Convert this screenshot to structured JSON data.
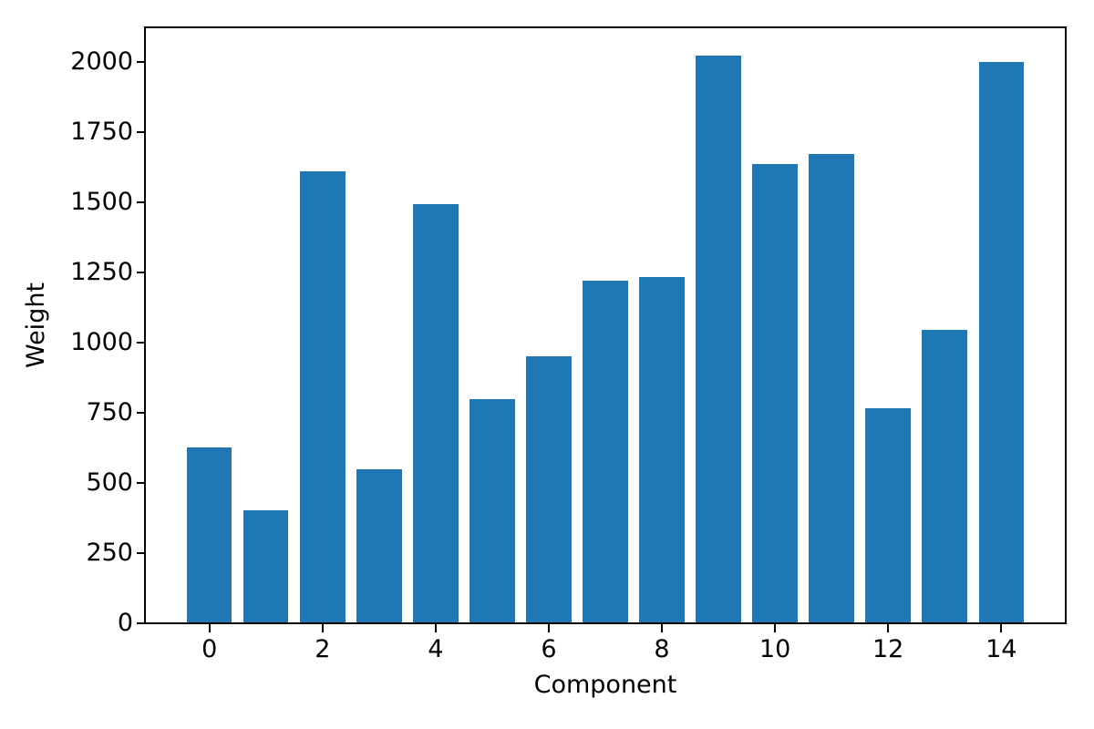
{
  "figure": {
    "background_color": "#ffffff",
    "axis_color": "#000000",
    "text_color": "#000000"
  },
  "chart_data": {
    "type": "bar",
    "title": "",
    "xlabel": "Component",
    "ylabel": "Weight",
    "categories": [
      0,
      1,
      2,
      3,
      4,
      5,
      6,
      7,
      8,
      9,
      10,
      11,
      12,
      13,
      14
    ],
    "values": [
      626,
      404,
      1608,
      548,
      1493,
      799,
      951,
      1219,
      1232,
      2021,
      1637,
      1670,
      766,
      1045,
      2000
    ],
    "bar_color": "#1f77b4",
    "bar_width": 0.8,
    "xticks": [
      0,
      2,
      4,
      6,
      8,
      10,
      12,
      14
    ],
    "yticks": [
      0,
      250,
      500,
      750,
      1000,
      1250,
      1500,
      1750,
      2000
    ],
    "xlim": [
      -1.14,
      15.14
    ],
    "ylim": [
      0,
      2122
    ],
    "grid": false,
    "legend_position": "none"
  }
}
